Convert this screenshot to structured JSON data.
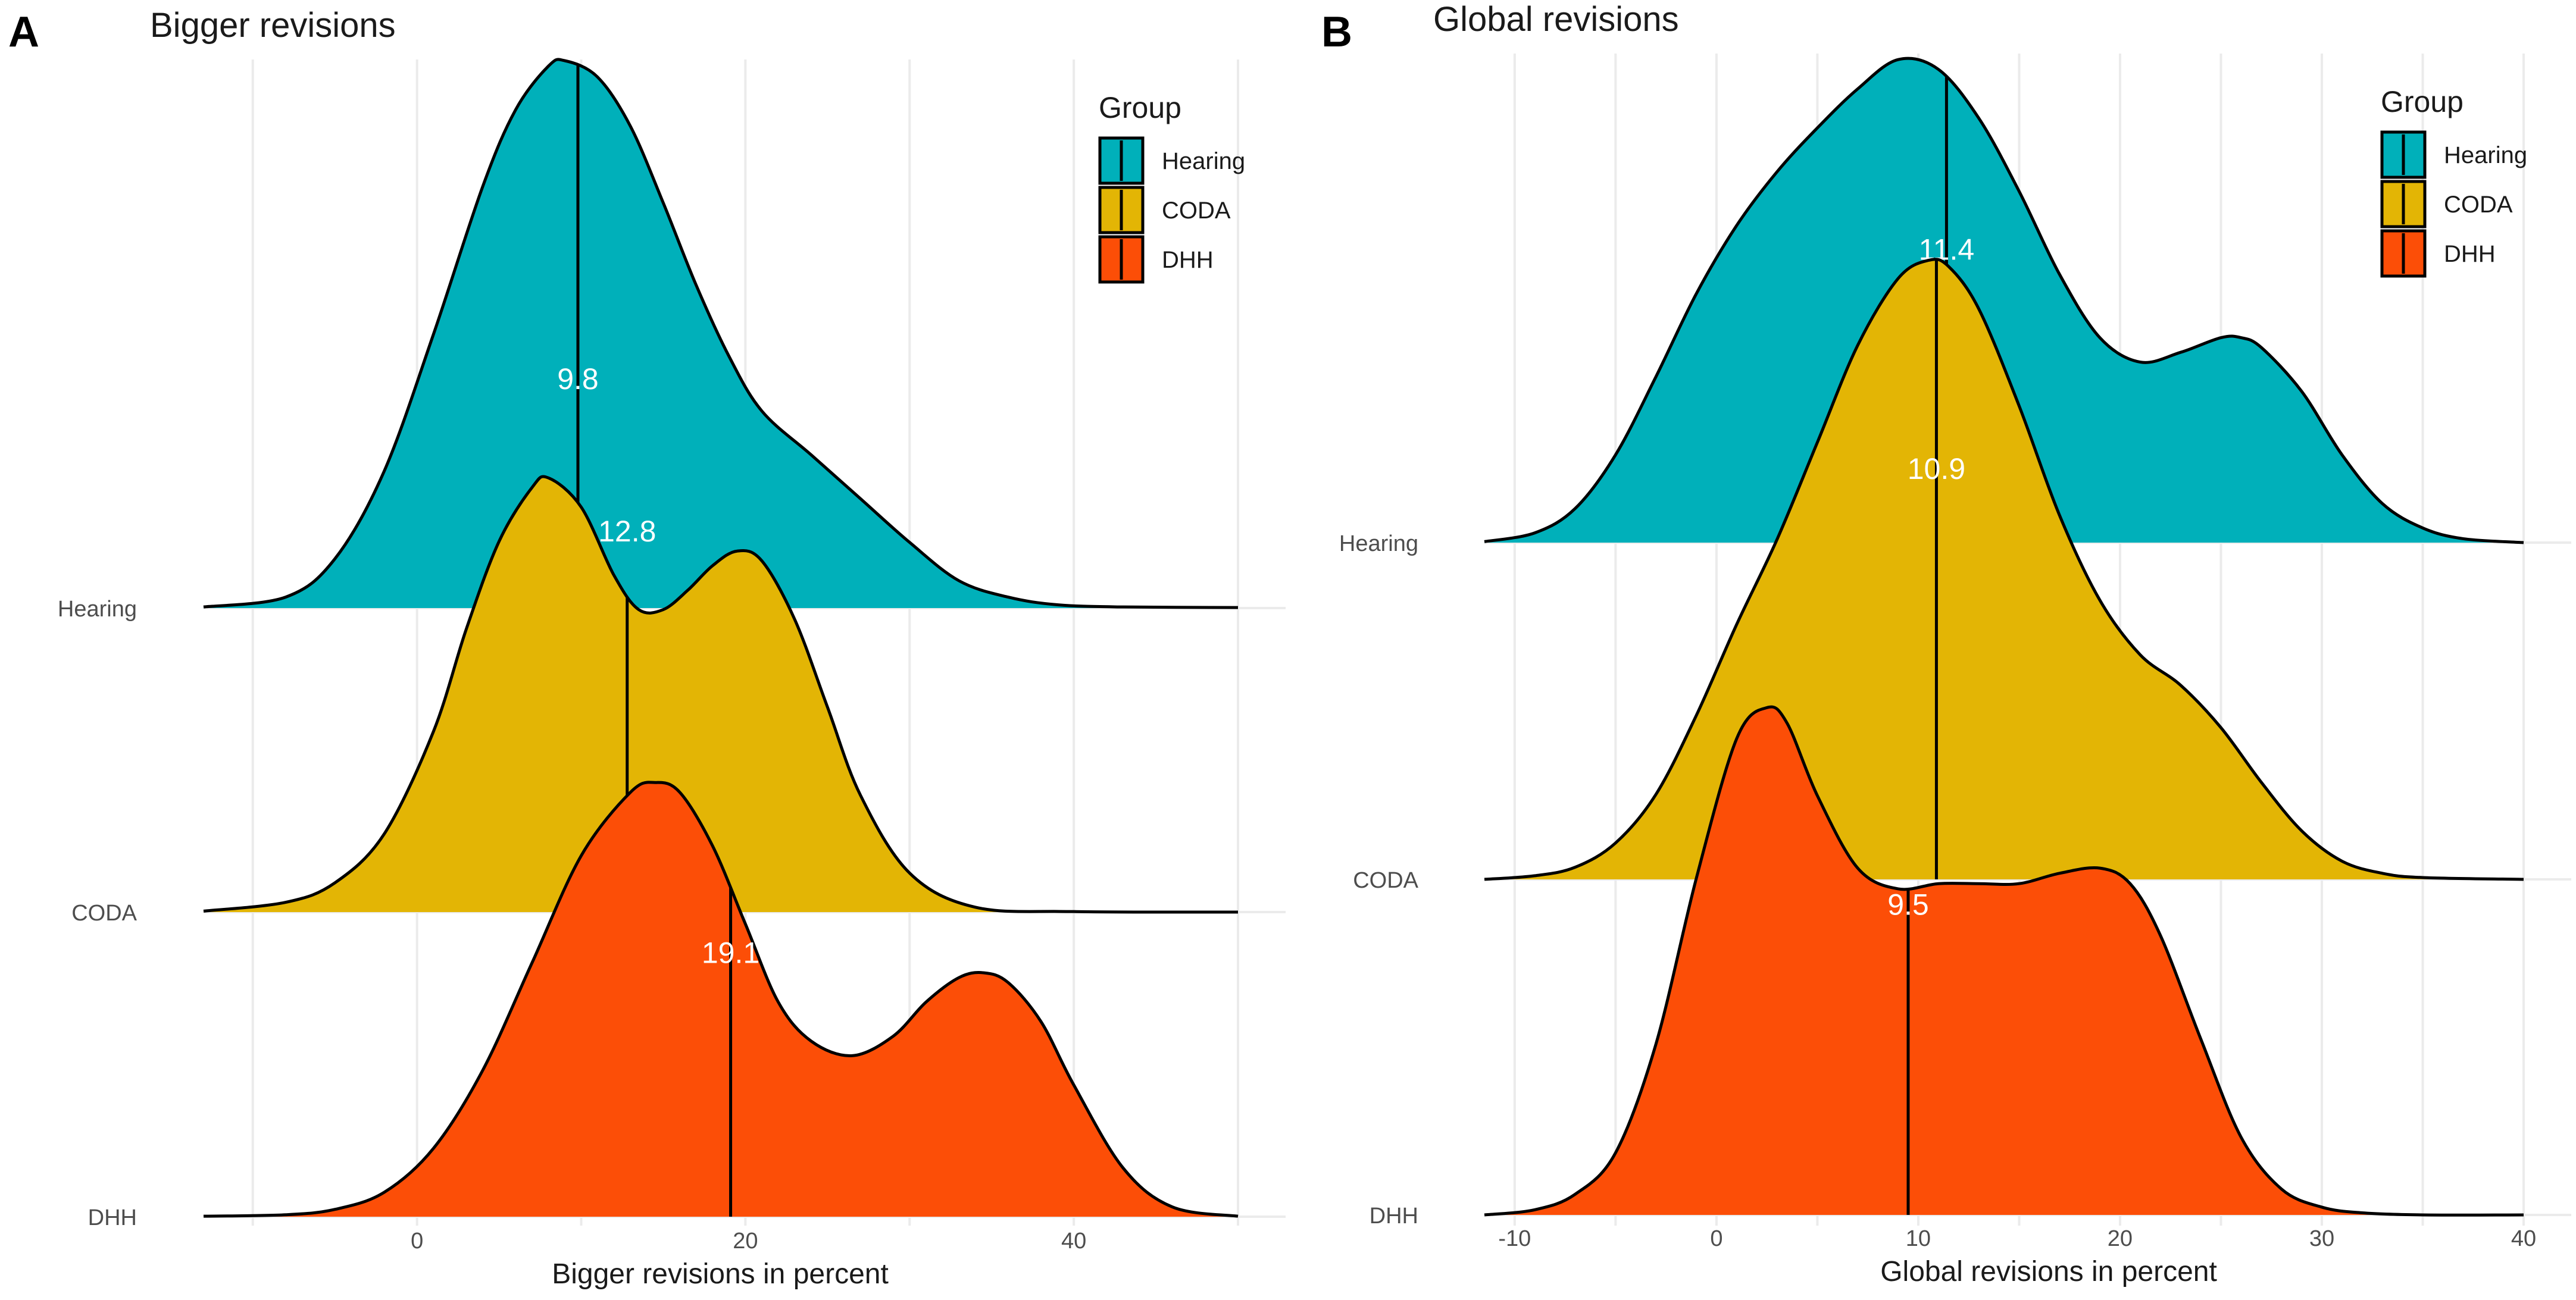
{
  "colors": {
    "Hearing": "#00B0BA",
    "CODA": "#E3B505",
    "DHH": "#FC4E07"
  },
  "chart_data": [
    {
      "type": "density_ridgeline",
      "panel": "A",
      "title": "Bigger revisions",
      "xlabel": "Bigger revisions in percent",
      "xlim": [
        -13,
        50
      ],
      "xticks": [
        0,
        20,
        40
      ],
      "xtick_labels": [
        "0",
        "20",
        "40"
      ],
      "legend": {
        "title": "Group",
        "entries": [
          "Hearing",
          "CODA",
          "DHH"
        ],
        "position": "top-right"
      },
      "series": [
        {
          "name": "Hearing",
          "median": 9.8,
          "median_label": "9.8",
          "curve_x": [
            -13,
            -8,
            -5,
            -2,
            1,
            4,
            6,
            8,
            9,
            11,
            13,
            15,
            17,
            19,
            21,
            24,
            27,
            30,
            33,
            36,
            39,
            43,
            50
          ],
          "curve_y": [
            0.002,
            0.02,
            0.09,
            0.25,
            0.5,
            0.77,
            0.91,
            0.99,
            1.0,
            0.97,
            0.88,
            0.74,
            0.59,
            0.46,
            0.36,
            0.28,
            0.2,
            0.12,
            0.05,
            0.02,
            0.006,
            0.002,
            0.001
          ]
        },
        {
          "name": "CODA",
          "median": 12.8,
          "median_label": "12.8",
          "curve_x": [
            -13,
            -8,
            -5,
            -2,
            1,
            3,
            5,
            7,
            8,
            10,
            12,
            13.5,
            15,
            16.5,
            18,
            19.5,
            21,
            23,
            25,
            27,
            30,
            34,
            40,
            50
          ],
          "curve_y": [
            0.002,
            0.02,
            0.06,
            0.16,
            0.37,
            0.58,
            0.76,
            0.87,
            0.89,
            0.83,
            0.69,
            0.62,
            0.62,
            0.66,
            0.71,
            0.74,
            0.72,
            0.6,
            0.42,
            0.24,
            0.08,
            0.01,
            0.001,
            0.0
          ]
        },
        {
          "name": "DHH",
          "median": 19.1,
          "median_label": "19.1",
          "curve_x": [
            -13,
            -8,
            -5,
            -2,
            1,
            4,
            7,
            10,
            13,
            14.5,
            16,
            18,
            20,
            22,
            24,
            26.5,
            29,
            31,
            33,
            34.5,
            36,
            38,
            40,
            43,
            46,
            50
          ],
          "curve_y": [
            0.001,
            0.004,
            0.015,
            0.05,
            0.14,
            0.3,
            0.52,
            0.74,
            0.87,
            0.89,
            0.87,
            0.76,
            0.6,
            0.44,
            0.36,
            0.33,
            0.37,
            0.44,
            0.49,
            0.5,
            0.48,
            0.4,
            0.27,
            0.1,
            0.02,
            0.001
          ]
        }
      ]
    },
    {
      "type": "density_ridgeline",
      "panel": "B",
      "title": "Global revisions",
      "xlabel": "Global revisions in percent",
      "xlim": [
        -11.5,
        40
      ],
      "xticks": [
        -10,
        0,
        10,
        20,
        30,
        40
      ],
      "xtick_labels": [
        "-10",
        "0",
        "10",
        "20",
        "30",
        "40"
      ],
      "legend": {
        "title": "Group",
        "entries": [
          "Hearing",
          "CODA",
          "DHH"
        ],
        "position": "top-right"
      },
      "series": [
        {
          "name": "Hearing",
          "median": 11.4,
          "median_label": "11.4",
          "curve_x": [
            -11.5,
            -9,
            -7,
            -5,
            -3,
            -1,
            1,
            3,
            5,
            7,
            9,
            11,
            13,
            15,
            17,
            19,
            21,
            23,
            25,
            26,
            27,
            29,
            31,
            33,
            35,
            37,
            40
          ],
          "curve_y": [
            0.002,
            0.02,
            0.07,
            0.18,
            0.34,
            0.51,
            0.65,
            0.76,
            0.85,
            0.93,
            0.99,
            0.97,
            0.87,
            0.72,
            0.55,
            0.42,
            0.37,
            0.39,
            0.42,
            0.42,
            0.4,
            0.31,
            0.18,
            0.08,
            0.03,
            0.008,
            0.0
          ]
        },
        {
          "name": "CODA",
          "median": 10.9,
          "median_label": "10.9",
          "curve_x": [
            -11.5,
            -9,
            -7,
            -5,
            -3,
            -1,
            1,
            3,
            5,
            7,
            9,
            10.5,
            11.5,
            13,
            15,
            17,
            19,
            21,
            23,
            25,
            27,
            29,
            31,
            33,
            35,
            40
          ],
          "curve_y": [
            0.0,
            0.006,
            0.02,
            0.06,
            0.14,
            0.27,
            0.42,
            0.56,
            0.72,
            0.88,
            0.99,
            1.02,
            1.01,
            0.94,
            0.78,
            0.6,
            0.46,
            0.37,
            0.32,
            0.25,
            0.16,
            0.08,
            0.03,
            0.01,
            0.003,
            0.0
          ]
        },
        {
          "name": "DHH",
          "median": 9.5,
          "median_label": "9.5",
          "curve_x": [
            -11.5,
            -9,
            -7,
            -5,
            -3,
            -1,
            1,
            2.5,
            3.5,
            5,
            7,
            9,
            11,
            13,
            15,
            17,
            19,
            20.5,
            22,
            24,
            26,
            28,
            30,
            32,
            35,
            40
          ],
          "curve_y": [
            0.0,
            0.01,
            0.04,
            0.12,
            0.33,
            0.65,
            0.92,
            0.98,
            0.95,
            0.81,
            0.67,
            0.63,
            0.64,
            0.64,
            0.64,
            0.66,
            0.67,
            0.64,
            0.54,
            0.34,
            0.15,
            0.05,
            0.015,
            0.004,
            0.0,
            0.0
          ]
        }
      ]
    }
  ]
}
